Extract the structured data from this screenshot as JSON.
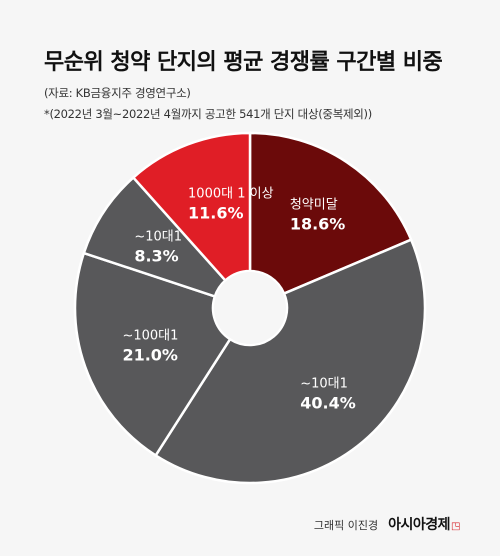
{
  "title": "무순위 청약 단지의 평균 경쟁률 구간별 비중",
  "source": "(자료: KB금융지주 경영연구소)",
  "note": "*(2022년 3월~2022년 4월까지 공고한 541개 단지 대상(중복제외))",
  "credit": "그래픽 이진경",
  "brand": "아시아경제",
  "chart_data": {
    "type": "pie",
    "title": "무순위 청약 단지의 평균 경쟁률 구간별 비중",
    "slices": [
      {
        "label": "청약미달",
        "value": 18.6,
        "display": "18.6%",
        "color": "#6b0a0a"
      },
      {
        "label": "~10대1",
        "value": 40.4,
        "display": "40.4%",
        "color": "#58585a"
      },
      {
        "label": "~100대1",
        "value": 21.0,
        "display": "21.0%",
        "color": "#58585a"
      },
      {
        "label": "~10대1",
        "value": 8.3,
        "display": "8.3%",
        "color": "#58585a"
      },
      {
        "label": "1000대 1 이상",
        "value": 11.6,
        "display": "11.6%",
        "color": "#e01e26"
      }
    ],
    "donut_hole": true,
    "legend": "none"
  }
}
